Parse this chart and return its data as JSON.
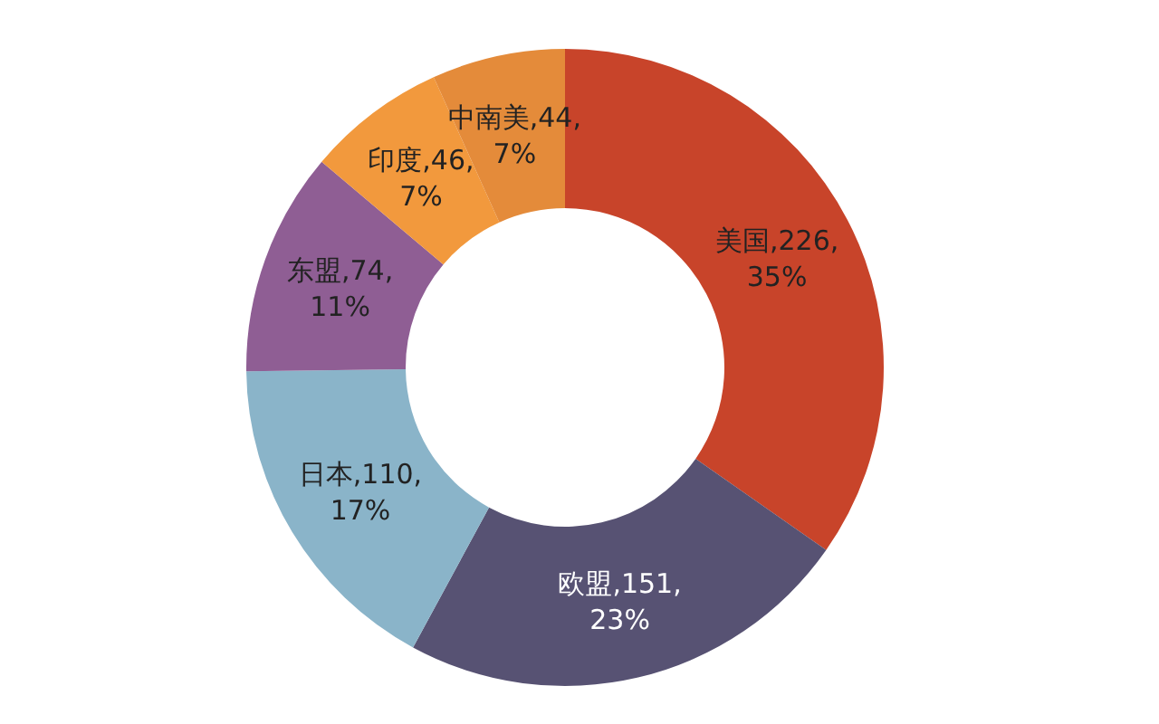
{
  "chart_data": {
    "type": "donut",
    "categories": [
      "美国",
      "欧盟",
      "日本",
      "东盟",
      "印度",
      "中南美"
    ],
    "values": [
      226,
      151,
      110,
      74,
      46,
      44
    ],
    "value_labels": [
      ",226,",
      ",151,",
      ",110,",
      ",74,",
      ",46,",
      ",44,"
    ],
    "annotations": [
      "35%",
      "23%",
      "17%",
      "11%",
      "7%",
      "7%"
    ],
    "colors": [
      "#c8442a",
      "#575273",
      "#8ab4c9",
      "#8f5e94",
      "#f2993d",
      "#e48b3a"
    ]
  }
}
